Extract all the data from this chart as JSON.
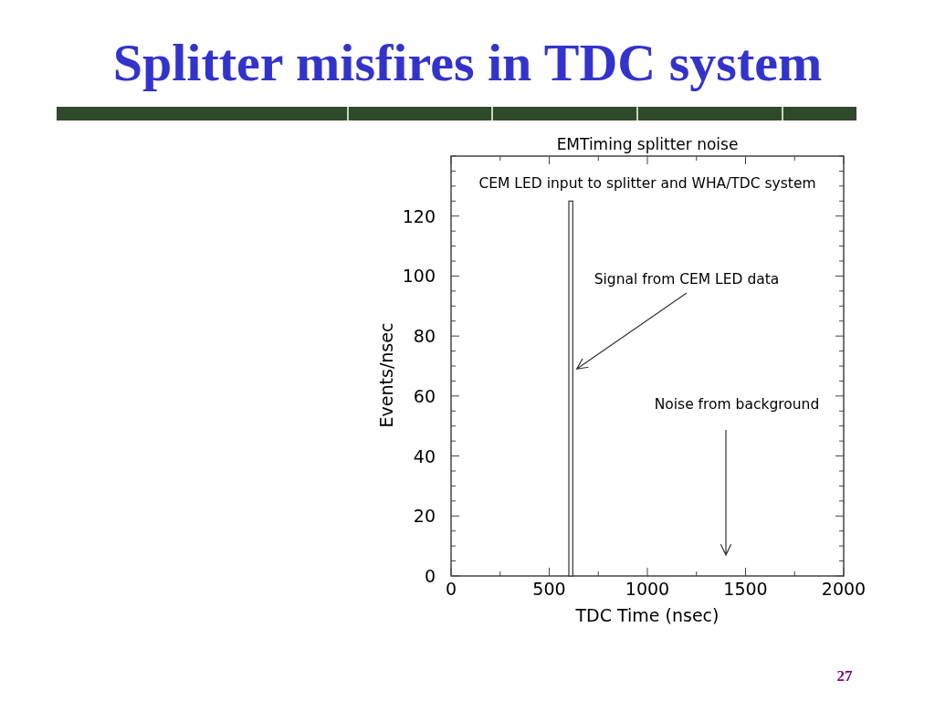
{
  "chart_data": {
    "type": "histogram",
    "title": "Splitter misfires in TDC system",
    "subtitle": "EMTiming splitter noise",
    "xlabel": "TDC Time (nsec)",
    "ylabel": "Events/nsec",
    "bins": [
      600,
      620
    ],
    "values": [
      125
    ],
    "color": "#ffffff",
    "xlim": [
      0,
      2000
    ],
    "ylim": [
      0,
      140
    ],
    "xticks": [
      0,
      {
        "value": 250,
        "label": null
      },
      500,
      {
        "value": 750,
        "label": null
      },
      1000,
      {
        "value": 1250,
        "label": null
      },
      1500,
      {
        "value": 1750,
        "label": null
      },
      2000
    ],
    "yticks": [
      0,
      {
        "value": 5,
        "label": null
      },
      {
        "value": 10,
        "label": null
      },
      {
        "value": 15,
        "label": null
      },
      20,
      {
        "value": 25,
        "label": null
      },
      {
        "value": 30,
        "label": null
      },
      {
        "value": 35,
        "label": null
      },
      40,
      {
        "value": 45,
        "label": null
      },
      {
        "value": 50,
        "label": null
      },
      {
        "value": 55,
        "label": null
      },
      60,
      {
        "value": 65,
        "label": null
      },
      {
        "value": 70,
        "label": null
      },
      {
        "value": 75,
        "label": null
      },
      80,
      {
        "value": 85,
        "label": null
      },
      {
        "value": 90,
        "label": null
      },
      {
        "value": 95,
        "label": null
      },
      100,
      {
        "value": 105,
        "label": null
      },
      {
        "value": 110,
        "label": null
      },
      {
        "value": 115,
        "label": null
      },
      120,
      {
        "value": 125,
        "label": null
      },
      {
        "value": 130,
        "label": null
      },
      {
        "value": 135,
        "label": null
      },
      {
        "value": 140,
        "label": null
      }
    ],
    "annotations": [
      "CEM LED input to splitter and WHA/TDC system",
      {
        "text": "Signal from CEM LED data",
        "x": 640,
        "y": 69
      },
      "Noise from background",
      "27"
    ]
  }
}
